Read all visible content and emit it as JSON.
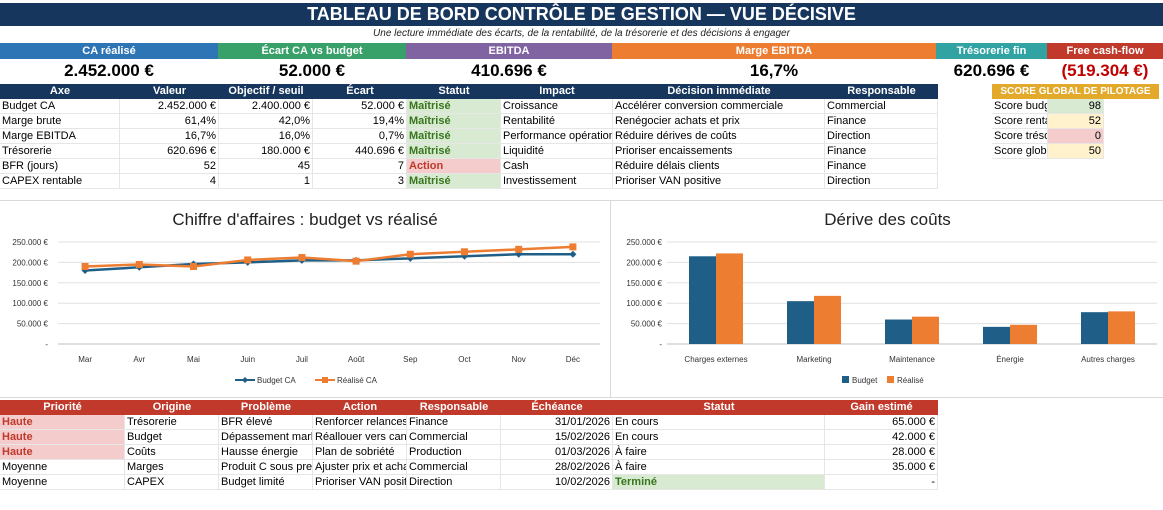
{
  "title": "TABLEAU DE BORD CONTRÔLE DE GESTION — VUE DÉCISIVE",
  "subtitle": "Une lecture immédiate des écarts, de la rentabilité, de la trésorerie et des décisions à engager",
  "kpis": [
    {
      "label": "CA réalisé",
      "value": "2.452.000 €",
      "color": "#2e75b6"
    },
    {
      "label": "Écart CA vs budget",
      "value": "52.000 €",
      "color": "#38a169"
    },
    {
      "label": "EBITDA",
      "value": "410.696 €",
      "color": "#8064a2"
    },
    {
      "label": "Marge EBITDA",
      "value": "16,7%",
      "color": "#ed7d31"
    },
    {
      "label": "Trésorerie fin",
      "value": "620.696 €",
      "color": "#31a3a3"
    },
    {
      "label": "Free cash-flow",
      "value": "(519.304 €)",
      "color": "#c0392b"
    }
  ],
  "axes_table": {
    "headers": [
      "Axe",
      "Valeur",
      "Objectif / seuil",
      "Écart",
      "Statut",
      "Impact",
      "Décision immédiate",
      "Responsable"
    ],
    "rows": [
      [
        "Budget CA",
        "2.452.000 €",
        "2.400.000 €",
        "52.000 €",
        "Maîtrisé",
        "Croissance",
        "Accélérer conversion commerciale",
        "Commercial"
      ],
      [
        "Marge brute",
        "61,4%",
        "42,0%",
        "19,4%",
        "Maîtrisé",
        "Rentabilité",
        "Renégocier achats et prix",
        "Finance"
      ],
      [
        "Marge EBITDA",
        "16,7%",
        "16,0%",
        "0,7%",
        "Maîtrisé",
        "Performance opération",
        "Réduire dérives de coûts",
        "Direction"
      ],
      [
        "Trésorerie",
        "620.696 €",
        "180.000 €",
        "440.696 €",
        "Maîtrisé",
        "Liquidité",
        "Prioriser encaissements",
        "Finance"
      ],
      [
        "BFR (jours)",
        "52",
        "45",
        "7",
        "Action",
        "Cash",
        "Réduire délais clients",
        "Finance"
      ],
      [
        "CAPEX rentable",
        "4",
        "1",
        "3",
        "Maîtrisé",
        "Investissement",
        "Prioriser VAN positive",
        "Direction"
      ]
    ]
  },
  "score": {
    "header": "SCORE GLOBAL DE PILOTAGE",
    "rows": [
      {
        "label": "Score budg",
        "value": "98",
        "bg": "#d9ead3"
      },
      {
        "label": "Score renta",
        "value": "52",
        "bg": "#fff2cc"
      },
      {
        "label": "Score tréso",
        "value": "0",
        "bg": "#f4cccc"
      },
      {
        "label": "Score glob",
        "value": "50",
        "bg": "#fff2cc"
      }
    ]
  },
  "chart_data": [
    {
      "type": "line",
      "title": "Chiffre d'affaires : budget vs réalisé",
      "categories": [
        "Mar",
        "Avr",
        "Mai",
        "Juin",
        "Juil",
        "Août",
        "Sep",
        "Oct",
        "Nov",
        "Déc"
      ],
      "series": [
        {
          "name": "Budget CA",
          "values": [
            180000,
            188000,
            196000,
            200000,
            205000,
            205000,
            210000,
            215000,
            220000,
            220000
          ],
          "color": "#1f5f87"
        },
        {
          "name": "Réalisé CA",
          "values": [
            190000,
            195000,
            190000,
            206000,
            212000,
            203000,
            220000,
            226000,
            232000,
            238000
          ],
          "color": "#ed7d31"
        }
      ],
      "yticks": [
        "250.000 €",
        "200.000 €",
        "150.000 €",
        "100.000 €",
        "50.000 €",
        "-"
      ],
      "ylim": [
        0,
        250000
      ]
    },
    {
      "type": "bar",
      "title": "Dérive des coûts",
      "categories": [
        "Charges externes",
        "Marketing",
        "Maintenance",
        "Énergie",
        "Autres charges"
      ],
      "series": [
        {
          "name": "Budget",
          "values": [
            215000,
            105000,
            60000,
            42000,
            78000
          ],
          "color": "#1f5f87"
        },
        {
          "name": "Réalisé",
          "values": [
            222000,
            118000,
            67000,
            47000,
            80000
          ],
          "color": "#ed7d31"
        }
      ],
      "yticks": [
        "250.000 €",
        "200.000 €",
        "150.000 €",
        "100.000 €",
        "50.000 €",
        "-"
      ],
      "ylim": [
        0,
        250000
      ]
    }
  ],
  "actions_table": {
    "headers": [
      "Priorité",
      "Origine",
      "Problème",
      "Action",
      "Responsable",
      "Échéance",
      "Statut",
      "Gain estimé"
    ],
    "rows": [
      [
        "Haute",
        "Trésorerie",
        "BFR élevé",
        "Renforcer relances",
        "Finance",
        "31/01/2026",
        "En cours",
        "65.000 €"
      ],
      [
        "Haute",
        "Budget",
        "Dépassement mark",
        "Réallouer vers can",
        "Commercial",
        "15/02/2026",
        "En cours",
        "42.000 €"
      ],
      [
        "Haute",
        "Coûts",
        "Hausse énergie",
        "Plan de sobriété",
        "Production",
        "01/03/2026",
        "À faire",
        "28.000 €"
      ],
      [
        "Moyenne",
        "Marges",
        "Produit C sous pres",
        "Ajuster prix et acha",
        "Commercial",
        "28/02/2026",
        "À faire",
        "35.000 €"
      ],
      [
        "Moyenne",
        "CAPEX",
        "Budget limité",
        "Prioriser VAN posit",
        "Direction",
        "10/02/2026",
        "Terminé",
        "-"
      ]
    ]
  }
}
